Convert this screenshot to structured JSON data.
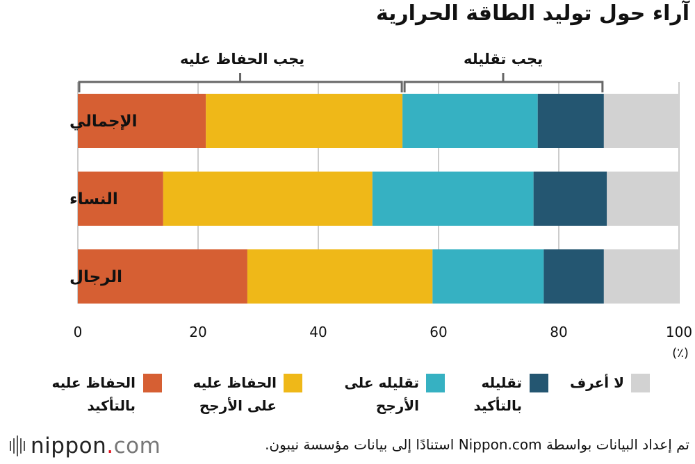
{
  "title": "آراء حول توليد الطاقة الحرارية",
  "group_labels": {
    "keep": "يجب الحفاظ عليه",
    "reduce": "يجب تقليله"
  },
  "unit_label": "(٪)",
  "colors": {
    "keep_definitely": "#d65f33",
    "keep_probably": "#efb818",
    "reduce_probably": "#36b1c2",
    "reduce_definitely": "#245671",
    "dont_know": "#d2d2d2",
    "bracket": "#666666",
    "grid": "#bbbbbb"
  },
  "legend": [
    {
      "key": "keep_definitely",
      "line1": "الحفاظ عليه",
      "line2": "بالتأكيد"
    },
    {
      "key": "keep_probably",
      "line1": "الحفاظ عليه",
      "line2": "على الأرجح"
    },
    {
      "key": "reduce_probably",
      "line1": "تقليله على",
      "line2": "الأرجح"
    },
    {
      "key": "reduce_definitely",
      "line1": "تقليله",
      "line2": "بالتأكيد"
    },
    {
      "key": "dont_know",
      "line1": "لا أعرف",
      "line2": ""
    }
  ],
  "chart_data": {
    "type": "bar",
    "orientation": "horizontal",
    "stacked": true,
    "categories": [
      "الإجمالي",
      "النساء",
      "الرجال"
    ],
    "series": [
      {
        "name": "الحفاظ عليه بالتأكيد",
        "key": "keep_definitely",
        "values": [
          21.3,
          14.2,
          28.2
        ]
      },
      {
        "name": "الحفاظ عليه على الأرجح",
        "key": "keep_probably",
        "values": [
          32.7,
          34.8,
          30.8
        ]
      },
      {
        "name": "تقليله على الأرجح",
        "key": "reduce_probably",
        "values": [
          22.5,
          26.8,
          18.5
        ]
      },
      {
        "name": "تقليله بالتأكيد",
        "key": "reduce_definitely",
        "values": [
          11.0,
          12.2,
          10.0
        ]
      },
      {
        "name": "لا أعرف",
        "key": "dont_know",
        "values": [
          12.5,
          12.0,
          12.5
        ]
      }
    ],
    "xlim": [
      0,
      100
    ],
    "xticks": [
      0,
      20,
      40,
      60,
      80,
      100
    ],
    "grid": true,
    "legend_position": "bottom"
  },
  "footer": {
    "logo_main": "nippon",
    "logo_dot": ".",
    "logo_tld": "com",
    "source": "تم إعداد البيانات بواسطة Nippon.com استنادًا إلى بيانات مؤسسة نيبون."
  }
}
